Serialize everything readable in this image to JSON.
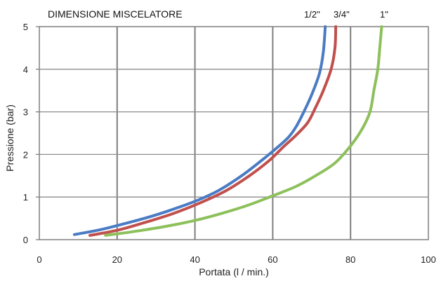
{
  "chart_data": {
    "type": "line",
    "title": "DIMENSIONE MISCELATORE",
    "xlabel": "Portata (l / min.)",
    "ylabel": "Pressione (bar)",
    "xlim": [
      0,
      100
    ],
    "ylim": [
      0,
      5
    ],
    "x_ticks": [
      "0",
      "20",
      "40",
      "60",
      "80",
      "100"
    ],
    "y_ticks": [
      "0",
      "1",
      "2",
      "3",
      "4",
      "5"
    ],
    "grid": {
      "vertical": true,
      "horizontal": true
    },
    "annotations": [
      "1/2\"",
      "3/4\"",
      "1\""
    ],
    "series": [
      {
        "color": "#4a7bc4",
        "points": [
          [
            9,
            0.12
          ],
          [
            15,
            0.22
          ],
          [
            20,
            0.33
          ],
          [
            27,
            0.5
          ],
          [
            33,
            0.67
          ],
          [
            40,
            0.9
          ],
          [
            46,
            1.15
          ],
          [
            52,
            1.5
          ],
          [
            57,
            1.85
          ],
          [
            61,
            2.15
          ],
          [
            64,
            2.4
          ],
          [
            66,
            2.65
          ],
          [
            68,
            3.0
          ],
          [
            70,
            3.4
          ],
          [
            72,
            3.9
          ],
          [
            73,
            4.4
          ],
          [
            73.5,
            5.0
          ]
        ]
      },
      {
        "color": "#c0504d",
        "points": [
          [
            13,
            0.1
          ],
          [
            20,
            0.22
          ],
          [
            27,
            0.4
          ],
          [
            34,
            0.6
          ],
          [
            41,
            0.85
          ],
          [
            48,
            1.15
          ],
          [
            54,
            1.5
          ],
          [
            59,
            1.85
          ],
          [
            63,
            2.2
          ],
          [
            66,
            2.45
          ],
          [
            69,
            2.75
          ],
          [
            71,
            3.1
          ],
          [
            73,
            3.5
          ],
          [
            75,
            4.0
          ],
          [
            76,
            4.5
          ],
          [
            76.2,
            5.0
          ]
        ]
      },
      {
        "color": "#8dc05b",
        "points": [
          [
            17,
            0.1
          ],
          [
            25,
            0.2
          ],
          [
            33,
            0.32
          ],
          [
            40,
            0.45
          ],
          [
            47,
            0.62
          ],
          [
            54,
            0.82
          ],
          [
            60,
            1.03
          ],
          [
            66,
            1.25
          ],
          [
            71,
            1.5
          ],
          [
            76,
            1.8
          ],
          [
            80,
            2.2
          ],
          [
            83,
            2.6
          ],
          [
            85,
            3.0
          ],
          [
            86,
            3.5
          ],
          [
            87,
            4.0
          ],
          [
            87.5,
            4.5
          ],
          [
            88,
            5.0
          ]
        ]
      }
    ]
  }
}
